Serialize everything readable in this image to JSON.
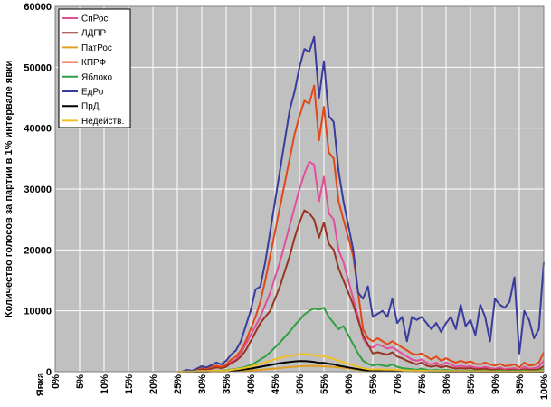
{
  "chart_data": {
    "type": "line",
    "ylabel": "Количество голосов за партии в 1% интервале явки",
    "xlabel": "Явка",
    "ylim": [
      0,
      60000
    ],
    "yticks": [
      "0",
      "10000",
      "20000",
      "30000",
      "40000",
      "50000",
      "60000"
    ],
    "xticks": [
      "0%",
      "5%",
      "10%",
      "15%",
      "20%",
      "25%",
      "30%",
      "35%",
      "40%",
      "45%",
      "50%",
      "55%",
      "60%",
      "65%",
      "70%",
      "75%",
      "80%",
      "85%",
      "90%",
      "95%",
      "100%"
    ],
    "grid": true,
    "legend_position": "top-left",
    "background_color": "#c0c0c0",
    "x": [
      25,
      26,
      27,
      28,
      29,
      30,
      31,
      32,
      33,
      34,
      35,
      36,
      37,
      38,
      39,
      40,
      41,
      42,
      43,
      44,
      45,
      46,
      47,
      48,
      49,
      50,
      51,
      52,
      53,
      54,
      55,
      56,
      57,
      58,
      59,
      60,
      61,
      62,
      63,
      64,
      65,
      66,
      67,
      68,
      69,
      70,
      71,
      72,
      73,
      74,
      75,
      76,
      77,
      78,
      79,
      80,
      81,
      82,
      83,
      84,
      85,
      86,
      87,
      88,
      89,
      90,
      91,
      92,
      93,
      94,
      95,
      96,
      97,
      98,
      99,
      100
    ],
    "series": [
      {
        "name": "СпРос",
        "color": "#e0509a",
        "values": [
          0,
          0,
          200,
          100,
          300,
          500,
          400,
          600,
          800,
          600,
          900,
          1600,
          2000,
          3000,
          4500,
          6000,
          7500,
          9000,
          11000,
          13000,
          15500,
          18000,
          21000,
          24000,
          27000,
          30000,
          32500,
          34500,
          34000,
          28000,
          32000,
          26000,
          25000,
          20000,
          18000,
          15000,
          12000,
          9000,
          5500,
          4200,
          4000,
          4500,
          4200,
          3800,
          4000,
          3500,
          3000,
          2500,
          2000,
          1800,
          2000,
          1500,
          1200,
          1500,
          1000,
          1500,
          1200,
          800,
          1000,
          800,
          900,
          700,
          600,
          800,
          600,
          500,
          700,
          400,
          500,
          600,
          300,
          800,
          500,
          600,
          800,
          1800
        ]
      },
      {
        "name": "ЛДПР",
        "color": "#993322",
        "values": [
          0,
          0,
          150,
          80,
          250,
          400,
          350,
          500,
          700,
          600,
          800,
          1400,
          1800,
          2500,
          3500,
          5000,
          6500,
          8000,
          9000,
          10000,
          12000,
          14000,
          16500,
          19000,
          22000,
          24500,
          26500,
          26000,
          25000,
          22000,
          24500,
          21000,
          20000,
          17000,
          15000,
          13000,
          11000,
          8500,
          6000,
          4500,
          3000,
          3200,
          3000,
          2800,
          3200,
          2500,
          2200,
          1800,
          1500,
          1200,
          1500,
          1000,
          800,
          1000,
          700,
          900,
          700,
          500,
          600,
          500,
          600,
          400,
          400,
          500,
          300,
          300,
          400,
          200,
          300,
          300,
          200,
          400,
          300,
          300,
          400,
          900
        ]
      },
      {
        "name": "ПатРос",
        "color": "#e0a020",
        "values": [
          0,
          0,
          10,
          10,
          20,
          30,
          30,
          40,
          50,
          50,
          60,
          80,
          100,
          120,
          150,
          200,
          250,
          300,
          380,
          450,
          520,
          600,
          680,
          750,
          820,
          880,
          920,
          950,
          940,
          900,
          880,
          820,
          780,
          700,
          620,
          520,
          420,
          320,
          240,
          180,
          150,
          140,
          130,
          120,
          110,
          100,
          90,
          80,
          70,
          60,
          60,
          50,
          50,
          50,
          40,
          40,
          40,
          30,
          30,
          30,
          30,
          30,
          20,
          20,
          20,
          20,
          20,
          20,
          20,
          20,
          20,
          20,
          20,
          20,
          20,
          30
        ]
      },
      {
        "name": "КПРФ",
        "color": "#e04818",
        "values": [
          0,
          0,
          250,
          120,
          400,
          700,
          550,
          800,
          1000,
          800,
          1200,
          2000,
          2500,
          3500,
          5000,
          7000,
          9000,
          11500,
          15000,
          19000,
          23000,
          27000,
          31000,
          35000,
          39000,
          42000,
          44500,
          44000,
          47000,
          38000,
          43500,
          36000,
          35000,
          28000,
          25000,
          22000,
          19000,
          13000,
          7000,
          5500,
          5000,
          5500,
          5000,
          4500,
          5000,
          4500,
          4000,
          3500,
          3000,
          2800,
          3000,
          2500,
          2000,
          2500,
          1800,
          2200,
          1800,
          1500,
          1800,
          1500,
          1700,
          1300,
          1200,
          1500,
          1200,
          1000,
          1300,
          900,
          1000,
          1200,
          700,
          1500,
          1000,
          1100,
          1500,
          3200
        ]
      },
      {
        "name": "Яблоко",
        "color": "#30a040",
        "values": [
          0,
          0,
          50,
          30,
          80,
          120,
          100,
          150,
          200,
          180,
          250,
          350,
          450,
          600,
          800,
          1100,
          1500,
          2000,
          2500,
          3200,
          4000,
          4800,
          5700,
          6600,
          7600,
          8500,
          9400,
          10000,
          10400,
          10200,
          10500,
          9000,
          8000,
          7000,
          7500,
          6000,
          4500,
          3000,
          1800,
          1300,
          1000,
          1200,
          1000,
          900,
          1200,
          800,
          600,
          500,
          400,
          300,
          500,
          300,
          200,
          300,
          200,
          300,
          200,
          100,
          200,
          100,
          200,
          100,
          100,
          200,
          100,
          100,
          200,
          100,
          100,
          200,
          100,
          200,
          100,
          100,
          200,
          400
        ]
      },
      {
        "name": "ЕдРо",
        "color": "#3a3c9c",
        "values": [
          0,
          0,
          300,
          150,
          500,
          900,
          700,
          1100,
          1500,
          1200,
          1800,
          2800,
          3500,
          5000,
          7500,
          10000,
          13500,
          14000,
          18000,
          23000,
          28000,
          33000,
          38000,
          43000,
          46000,
          50000,
          53000,
          52500,
          55000,
          45000,
          51000,
          42000,
          41000,
          33000,
          28000,
          24000,
          20000,
          13000,
          12000,
          14000,
          9000,
          9500,
          10000,
          9000,
          12000,
          8000,
          9000,
          5000,
          9000,
          8500,
          9000,
          8000,
          7000,
          8000,
          6500,
          8000,
          9000,
          7000,
          11000,
          7500,
          8500,
          6000,
          11000,
          9000,
          5000,
          12000,
          11000,
          10500,
          11500,
          15500,
          3000,
          10000,
          8500,
          5500,
          7000,
          18000
        ]
      },
      {
        "name": "ПрД",
        "color": "#000000",
        "values": [
          0,
          0,
          20,
          10,
          40,
          60,
          50,
          80,
          100,
          90,
          120,
          180,
          230,
          300,
          400,
          500,
          650,
          800,
          950,
          1100,
          1250,
          1400,
          1500,
          1600,
          1700,
          1750,
          1750,
          1700,
          1600,
          1450,
          1450,
          1300,
          1200,
          1000,
          850,
          700,
          550,
          420,
          300,
          230,
          180,
          180,
          160,
          150,
          160,
          130,
          110,
          90,
          80,
          70,
          80,
          60,
          50,
          60,
          40,
          50,
          40,
          30,
          40,
          30,
          30,
          30,
          30,
          30,
          20,
          20,
          30,
          20,
          20,
          20,
          20,
          20,
          20,
          20,
          20,
          40
        ]
      },
      {
        "name": "Недейств.",
        "color": "#f0c020",
        "values": [
          0,
          0,
          40,
          20,
          70,
          100,
          80,
          130,
          170,
          150,
          200,
          300,
          380,
          500,
          650,
          850,
          1050,
          1300,
          1550,
          1800,
          2050,
          2250,
          2450,
          2600,
          2750,
          2850,
          2900,
          2850,
          2750,
          2550,
          2600,
          2300,
          2100,
          1800,
          1550,
          1300,
          1050,
          800,
          550,
          420,
          350,
          380,
          350,
          320,
          350,
          300,
          250,
          200,
          180,
          150,
          180,
          130,
          100,
          130,
          90,
          120,
          90,
          70,
          90,
          70,
          80,
          60,
          60,
          70,
          50,
          50,
          60,
          40,
          50,
          50,
          40,
          60,
          40,
          50,
          60,
          150
        ]
      }
    ]
  }
}
